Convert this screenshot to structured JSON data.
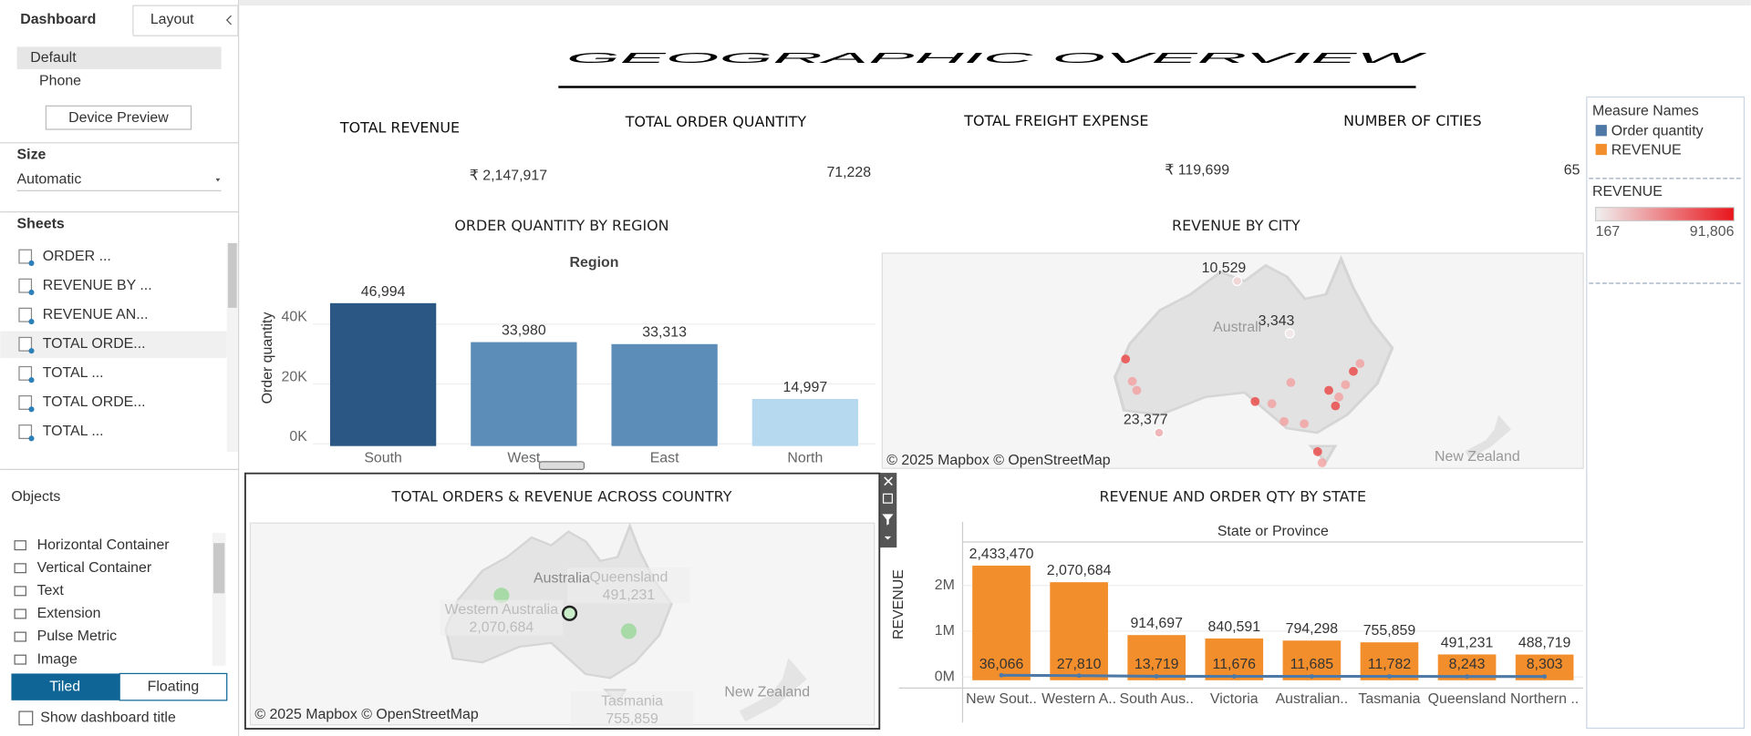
{
  "sidebar": {
    "tabs": [
      "Dashboard",
      "Layout"
    ],
    "devices": [
      "Default",
      "Phone"
    ],
    "device_preview": "Device Preview",
    "size": {
      "label": "Size",
      "value": "Automatic"
    },
    "sheets": {
      "label": "Sheets",
      "items": [
        "ORDER ...",
        "REVENUE BY ...",
        "REVENUE AN...",
        "TOTAL ORDE...",
        "TOTAL ...",
        "TOTAL ORDE...",
        "TOTAL ..."
      ]
    },
    "objects": {
      "label": "Objects",
      "items": [
        "Horizontal Container",
        "Vertical Container",
        "Text",
        "Extension",
        "Pulse Metric",
        "Image"
      ]
    },
    "layout_modes": [
      "Tiled",
      "Floating"
    ],
    "show_title": "Show dashboard title"
  },
  "dashboard": {
    "title": "GEOGRAPHIC OVERVIEW",
    "kpis": [
      {
        "label": "TOTAL REVENUE",
        "value": "₹ 2,147,917"
      },
      {
        "label": "TOTAL ORDER QUANTITY",
        "value": "71,228"
      },
      {
        "label": "TOTAL FREIGHT EXPENSE",
        "value": "₹ 119,699"
      },
      {
        "label": "NUMBER OF CITIES",
        "value": "65"
      }
    ],
    "legend": {
      "title": "Measure Names"
    },
    "color_legend": {
      "title": "REVENUE",
      "range": [
        167,
        {
          "value": 91806,
          "label": "91,806"
        }
      ],
      "colors": [
        "#f0f0f0",
        "#e8141b"
      ]
    }
  },
  "chart_data": [
    {
      "type": "bar",
      "title": "ORDER QUANTITY BY REGION",
      "header": "Region",
      "y_label": "Order quantity",
      "categories": [
        "South",
        "West",
        "East",
        "North"
      ],
      "values": [
        46994,
        33980,
        33313,
        14997
      ],
      "value_labels": [
        "46,994",
        "33,980",
        "33,313",
        "14,997"
      ],
      "colors": [
        "#2a5783",
        "#5b8db8",
        "#5b8db8",
        "#b6d9ef"
      ],
      "ylim": [
        0,
        57000
      ],
      "yticks": [
        {
          "value": 0,
          "label": "0K"
        },
        {
          "value": 20000,
          "label": "20K"
        },
        {
          "value": 40000,
          "label": "40K"
        }
      ],
      "grid": true
    },
    {
      "type": "map",
      "title": "REVENUE BY CITY",
      "values": [
        10529,
        3343,
        23377
      ],
      "value_labels": [
        "10,529",
        "3,343",
        "23,377"
      ],
      "places": [
        "Australi",
        "New Zealand"
      ],
      "attribution": "© 2025 Mapbox © OpenStreetMap"
    },
    {
      "type": "map",
      "title": "TOTAL ORDERS & REVENUE ACROSS COUNTRY",
      "categories": [
        "Western Australia",
        "Queensland",
        "Tasmania"
      ],
      "values": [
        2070684,
        491231,
        755859
      ],
      "value_labels": [
        "2,070,684",
        "491,231",
        "755,859"
      ],
      "color": "#8fd68f",
      "places": [
        "Australia",
        "New Zealand"
      ],
      "attribution": "© 2025 Mapbox © OpenStreetMap"
    },
    {
      "type": "combo",
      "title": "REVENUE AND ORDER QTY BY STATE",
      "header": "State or Province",
      "y_label": "REVENUE",
      "categories": [
        "New Sout..",
        "Western A..",
        "South Aus..",
        "Victoria",
        "Australian..",
        "Tasmania",
        "Queensland",
        "Northern .."
      ],
      "series": [
        {
          "name": "REVENUE",
          "color": "#f28e2b",
          "values": [
            2433470,
            2070684,
            914697,
            840591,
            794298,
            755859,
            491231,
            488719
          ],
          "value_labels": [
            "2,433,470",
            "2,070,684",
            "914,697",
            "840,591",
            "794,298",
            "755,859",
            "491,231",
            "488,719"
          ]
        },
        {
          "name": "Order quantity",
          "color": "#4e79a7",
          "values": [
            36066,
            27810,
            13719,
            11676,
            11685,
            11782,
            8243,
            8303
          ],
          "value_labels": [
            "36,066",
            "27,810",
            "13,719",
            "11,676",
            "11,685",
            "11,782",
            "8,243",
            "8,303"
          ]
        }
      ],
      "ylim": [
        0,
        3000000
      ],
      "yticks": [
        {
          "value": 0,
          "label": "0M"
        },
        {
          "value": 1000000,
          "label": "1M"
        },
        {
          "value": 2000000,
          "label": "2M"
        }
      ],
      "grid": true
    }
  ]
}
